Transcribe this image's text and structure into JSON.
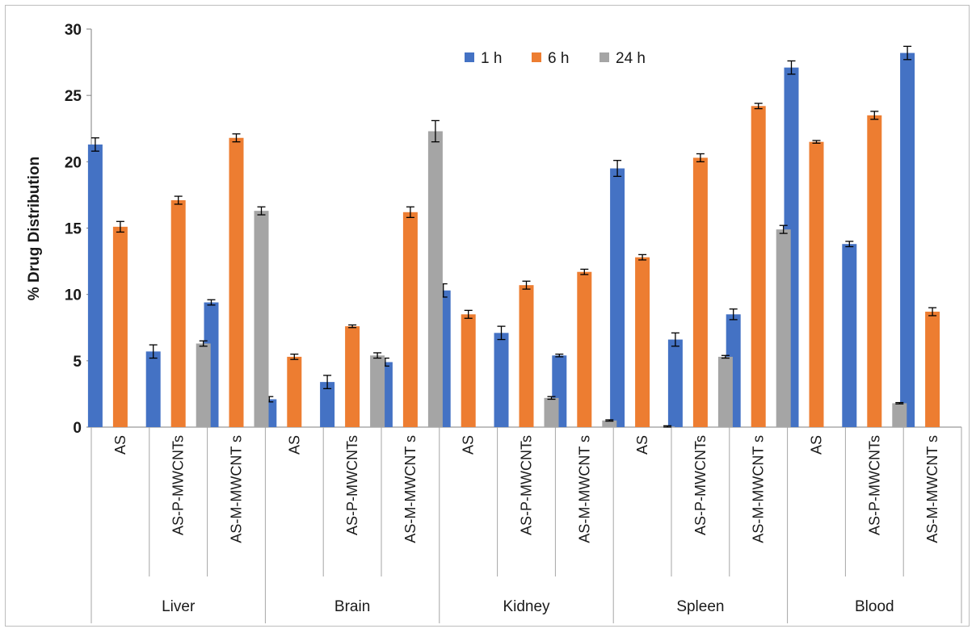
{
  "chart_data": {
    "type": "bar",
    "title": "",
    "xlabel": "",
    "ylabel": "% Drug Distribution",
    "ylim": [
      0,
      30
    ],
    "yticks": [
      0,
      5,
      10,
      15,
      20,
      25,
      30
    ],
    "grid": false,
    "legend_position": "top-center",
    "groups": [
      "Liver",
      "Brain",
      "Kidney",
      "Spleen",
      "Blood"
    ],
    "subcategories": [
      "AS",
      "AS-P-MWCNTs",
      "AS-M-MWCNTs"
    ],
    "categories": [
      "AS",
      "AS-P-MWCNTs",
      "AS-M-MWCNT s",
      "AS",
      "AS-P-MWCNTs",
      "AS-M-MWCNT s",
      "AS",
      "AS-P-MWCNTs",
      "AS-M-MWCNT s",
      "AS",
      "AS-P-MWCNTs",
      "AS-M-MWCNT s",
      "AS",
      "AS-P-MWCNTs",
      "AS-M-MWCNT s"
    ],
    "series": [
      {
        "name": "1 h",
        "color": "#4472C4",
        "values": [
          21.3,
          5.7,
          9.4,
          2.1,
          3.4,
          4.9,
          10.3,
          7.1,
          5.4,
          19.5,
          6.6,
          8.5,
          27.1,
          13.8,
          28.2
        ],
        "errors": [
          0.5,
          0.5,
          0.2,
          0.2,
          0.5,
          0.3,
          0.5,
          0.5,
          0.1,
          0.6,
          0.5,
          0.4,
          0.5,
          0.2,
          0.5
        ]
      },
      {
        "name": "6 h",
        "color": "#ED7D31",
        "values": [
          15.1,
          17.1,
          21.8,
          5.3,
          7.6,
          16.2,
          8.5,
          10.7,
          11.7,
          12.8,
          20.3,
          24.2,
          21.5,
          23.5,
          8.7
        ],
        "errors": [
          0.4,
          0.3,
          0.3,
          0.2,
          0.1,
          0.4,
          0.3,
          0.3,
          0.2,
          0.2,
          0.3,
          0.2,
          0.1,
          0.3,
          0.3
        ]
      },
      {
        "name": "24 h",
        "color": "#A5A5A5",
        "values": [
          null,
          6.3,
          16.3,
          null,
          5.4,
          22.3,
          null,
          2.2,
          0.5,
          0.05,
          5.3,
          14.9,
          null,
          1.8,
          null
        ],
        "errors": [
          0,
          0.2,
          0.3,
          0,
          0.2,
          0.8,
          0,
          0.1,
          0.05,
          0.05,
          0.1,
          0.3,
          0,
          0.05,
          0
        ]
      }
    ]
  }
}
